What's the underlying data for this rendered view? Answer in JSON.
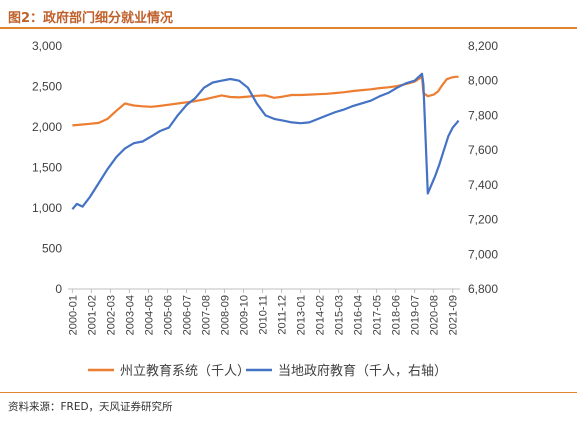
{
  "figure": {
    "title": "图2：政府部门细分就业情况",
    "source": "资料来源：FRED，天风证券研究所"
  },
  "chart_data": {
    "type": "line",
    "x_ticks": [
      "2000-01",
      "2001-02",
      "2002-03",
      "2003-04",
      "2004-05",
      "2005-06",
      "2006-07",
      "2007-08",
      "2008-09",
      "2009-10",
      "2010-11",
      "2011-12",
      "2013-01",
      "2014-02",
      "2015-03",
      "2016-04",
      "2017-05",
      "2018-06",
      "2019-07",
      "2020-08",
      "2021-09"
    ],
    "y_left": {
      "min": 0,
      "max": 3000,
      "ticks": [
        "0",
        "500",
        "1,000",
        "1,500",
        "2,000",
        "2,500",
        "3,000"
      ]
    },
    "y_right": {
      "min": 6800,
      "max": 8200,
      "ticks": [
        "6,800",
        "7,000",
        "7,200",
        "7,400",
        "7,600",
        "7,800",
        "8,000",
        "8,200"
      ]
    },
    "grid": false,
    "legend_position": "bottom",
    "series": [
      {
        "name": "州立教育系统（千人）",
        "axis": "left",
        "color": "#ed7d31",
        "points": [
          [
            "2000-01",
            2020
          ],
          [
            "2000-07",
            2030
          ],
          [
            "2001-01",
            2040
          ],
          [
            "2001-07",
            2050
          ],
          [
            "2002-01",
            2100
          ],
          [
            "2002-07",
            2200
          ],
          [
            "2003-01",
            2290
          ],
          [
            "2003-07",
            2265
          ],
          [
            "2004-01",
            2255
          ],
          [
            "2004-07",
            2250
          ],
          [
            "2005-01",
            2260
          ],
          [
            "2005-07",
            2275
          ],
          [
            "2006-01",
            2290
          ],
          [
            "2006-07",
            2305
          ],
          [
            "2007-01",
            2320
          ],
          [
            "2007-07",
            2340
          ],
          [
            "2008-01",
            2365
          ],
          [
            "2008-07",
            2390
          ],
          [
            "2009-01",
            2370
          ],
          [
            "2009-07",
            2365
          ],
          [
            "2010-01",
            2375
          ],
          [
            "2010-07",
            2385
          ],
          [
            "2011-01",
            2390
          ],
          [
            "2011-07",
            2360
          ],
          [
            "2012-01",
            2375
          ],
          [
            "2012-07",
            2395
          ],
          [
            "2013-01",
            2395
          ],
          [
            "2013-07",
            2400
          ],
          [
            "2014-01",
            2405
          ],
          [
            "2014-07",
            2410
          ],
          [
            "2015-01",
            2420
          ],
          [
            "2015-07",
            2430
          ],
          [
            "2016-01",
            2445
          ],
          [
            "2016-07",
            2455
          ],
          [
            "2017-01",
            2465
          ],
          [
            "2017-07",
            2480
          ],
          [
            "2018-01",
            2490
          ],
          [
            "2018-07",
            2505
          ],
          [
            "2019-01",
            2530
          ],
          [
            "2019-07",
            2560
          ],
          [
            "2019-12",
            2620
          ],
          [
            "2020-01",
            2420
          ],
          [
            "2020-04",
            2380
          ],
          [
            "2020-08",
            2400
          ],
          [
            "2020-11",
            2440
          ],
          [
            "2021-02",
            2520
          ],
          [
            "2021-05",
            2590
          ],
          [
            "2021-08",
            2610
          ],
          [
            "2021-11",
            2620
          ],
          [
            "2022-01",
            2620
          ]
        ]
      },
      {
        "name": "当地政府教育（千人，右轴）",
        "axis": "right",
        "color": "#4472c4",
        "points": [
          [
            "2000-01",
            7260
          ],
          [
            "2000-04",
            7290
          ],
          [
            "2000-08",
            7275
          ],
          [
            "2001-01",
            7330
          ],
          [
            "2001-07",
            7410
          ],
          [
            "2002-01",
            7490
          ],
          [
            "2002-07",
            7560
          ],
          [
            "2003-01",
            7610
          ],
          [
            "2003-07",
            7640
          ],
          [
            "2004-01",
            7650
          ],
          [
            "2004-07",
            7680
          ],
          [
            "2005-01",
            7710
          ],
          [
            "2005-07",
            7730
          ],
          [
            "2006-01",
            7800
          ],
          [
            "2006-07",
            7860
          ],
          [
            "2007-01",
            7900
          ],
          [
            "2007-07",
            7960
          ],
          [
            "2008-01",
            7990
          ],
          [
            "2008-07",
            8000
          ],
          [
            "2009-01",
            8010
          ],
          [
            "2009-07",
            8000
          ],
          [
            "2010-01",
            7960
          ],
          [
            "2010-07",
            7870
          ],
          [
            "2011-01",
            7800
          ],
          [
            "2011-07",
            7780
          ],
          [
            "2012-01",
            7770
          ],
          [
            "2012-07",
            7760
          ],
          [
            "2013-01",
            7755
          ],
          [
            "2013-07",
            7760
          ],
          [
            "2014-01",
            7780
          ],
          [
            "2014-07",
            7800
          ],
          [
            "2015-01",
            7820
          ],
          [
            "2015-07",
            7835
          ],
          [
            "2016-01",
            7855
          ],
          [
            "2016-07",
            7870
          ],
          [
            "2017-01",
            7885
          ],
          [
            "2017-07",
            7910
          ],
          [
            "2018-01",
            7930
          ],
          [
            "2018-07",
            7960
          ],
          [
            "2019-01",
            7985
          ],
          [
            "2019-07",
            8000
          ],
          [
            "2019-12",
            8040
          ],
          [
            "2020-01",
            7980
          ],
          [
            "2020-04",
            7350
          ],
          [
            "2020-06",
            7390
          ],
          [
            "2020-09",
            7450
          ],
          [
            "2020-12",
            7520
          ],
          [
            "2021-03",
            7600
          ],
          [
            "2021-06",
            7680
          ],
          [
            "2021-09",
            7730
          ],
          [
            "2021-12",
            7760
          ],
          [
            "2022-01",
            7770
          ]
        ]
      }
    ]
  }
}
